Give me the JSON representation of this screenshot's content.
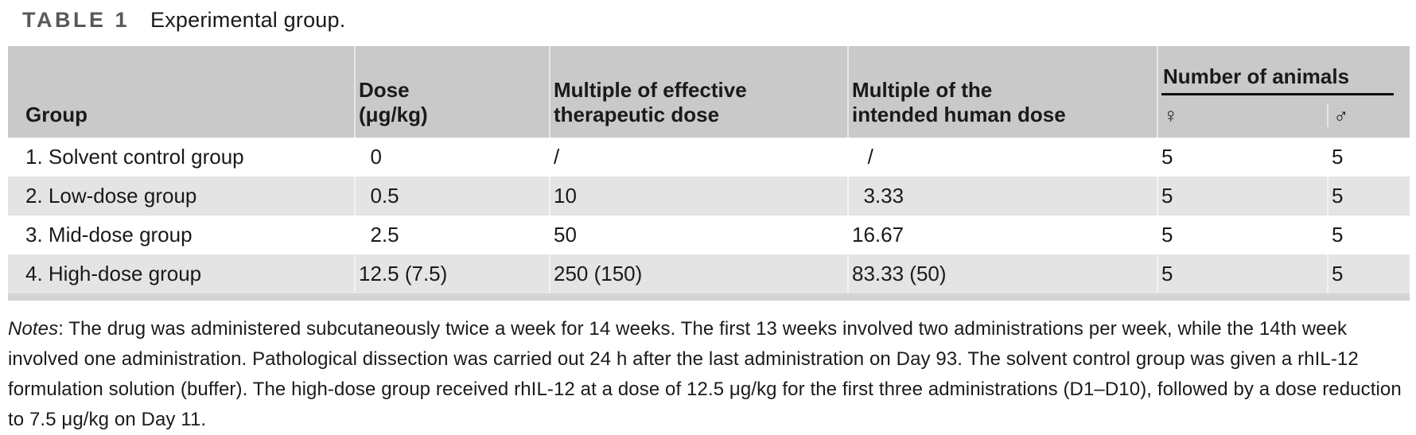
{
  "title": {
    "label": "TABLE 1",
    "caption": "Experimental group."
  },
  "table": {
    "columns": {
      "group": "Group",
      "dose": [
        "Dose",
        "(μg/kg)"
      ],
      "mult_effective": [
        "Multiple of effective",
        "therapeutic dose"
      ],
      "mult_human": [
        "Multiple of the",
        "intended human dose"
      ],
      "animals_group": "Number of animals",
      "female_symbol": "♀",
      "male_symbol": "♂"
    },
    "rows": [
      {
        "group": "1. Solvent control group",
        "dose": " 0",
        "mult_effective": "/",
        "mult_human": "  /",
        "female": "5",
        "male": "5"
      },
      {
        "group": "2. Low-dose group",
        "dose": " 0.5",
        "mult_effective": "10",
        "mult_human": " 3.33",
        "female": "5",
        "male": "5"
      },
      {
        "group": "3. Mid-dose group",
        "dose": " 2.5",
        "mult_effective": "50",
        "mult_human": "16.67",
        "female": "5",
        "male": "5"
      },
      {
        "group": "4. High-dose group",
        "dose": "12.5 (7.5)",
        "mult_effective": "250 (150)",
        "mult_human": "83.33 (50)",
        "female": "5",
        "male": "5"
      }
    ]
  },
  "notes": {
    "label": "Notes",
    "text": ": The drug was administered subcutaneously twice a week for 14 weeks. The first 13 weeks involved two administrations per week, while the 14th week involved one administration. Pathological dissection was carried out 24 h after the last administration on Day 93. The solvent control group was given a rhIL-12 formulation solution (buffer). The high-dose group received rhIL-12 at a dose of 12.5 μg/kg for the first three administrations (D1–D10), followed by a dose reduction to 7.5 μg/kg on Day 11."
  },
  "theme": {
    "header_bg": "#c9c9c9",
    "alt_row_bg": "#e4e4e4",
    "bottom_bar": "#d4d4d4",
    "title_label_color": "#595959",
    "text_color": "#1a1a1a",
    "rule_color": "#0d0d0d"
  }
}
